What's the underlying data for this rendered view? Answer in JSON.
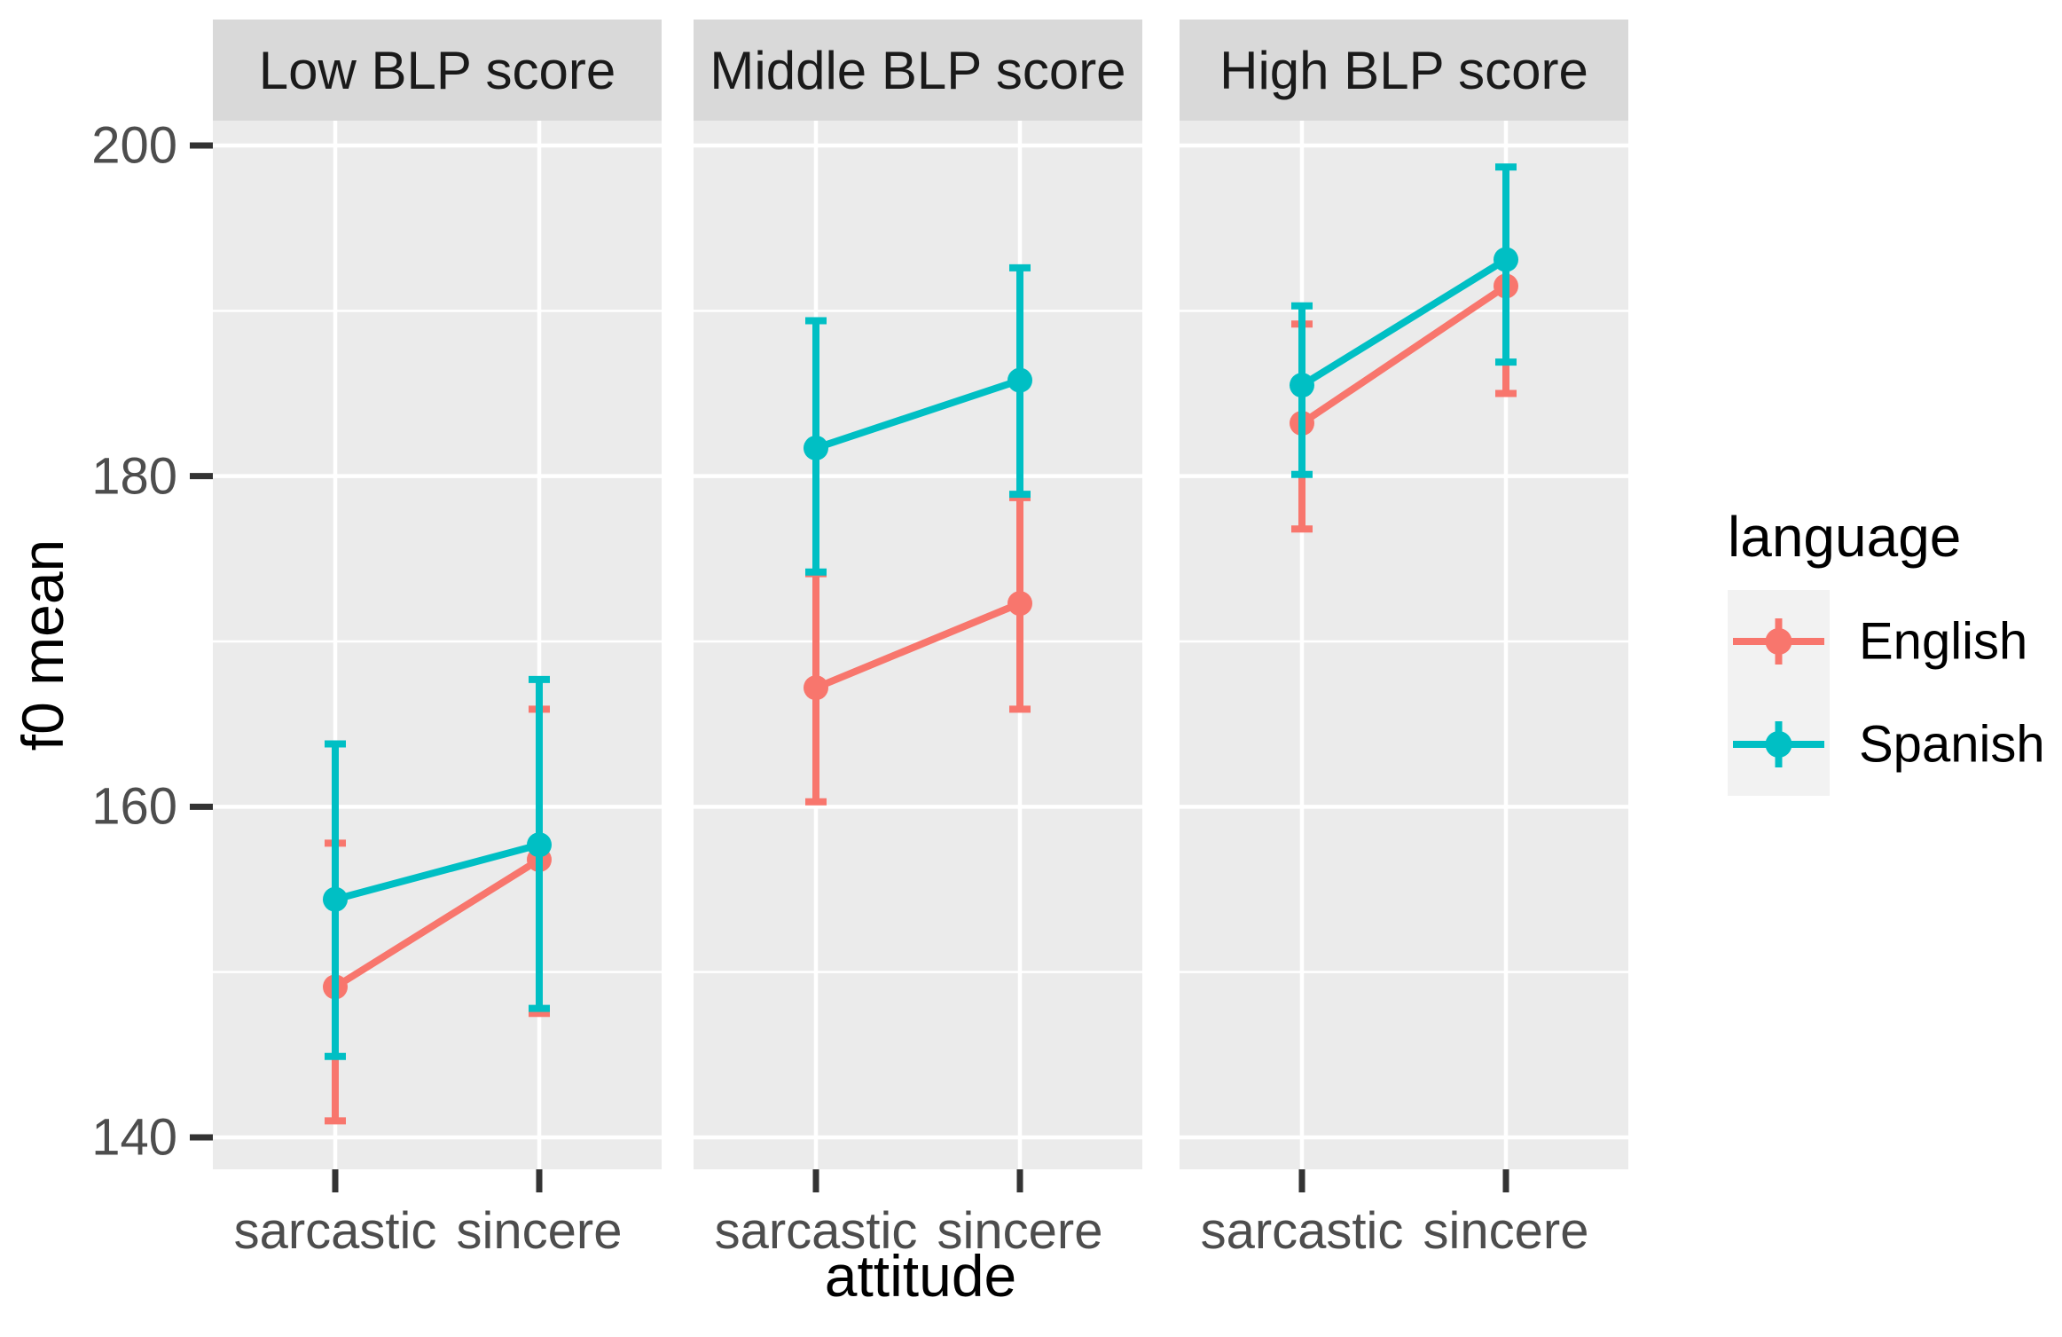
{
  "chart_data": {
    "type": "line",
    "title": "",
    "xlabel": "attitude",
    "ylabel": "f0 mean",
    "x_categories": [
      "sarcastic",
      "sincere"
    ],
    "y_ticks": [
      "200",
      "180",
      "160",
      "140"
    ],
    "y_tick_values": [
      200,
      180,
      160,
      140
    ],
    "y_minor_ticks": [
      190,
      170,
      150
    ],
    "ylim": [
      138,
      201.5
    ],
    "grid": "on",
    "error_bars": "95% CI (caps shown)",
    "facets": [
      {
        "label": "Low BLP score",
        "series": [
          {
            "name": "English",
            "values": [
              {
                "x": "sarcastic",
                "mean": 149.1,
                "ci_low": 141.0,
                "ci_high": 157.8
              },
              {
                "x": "sincere",
                "mean": 156.8,
                "ci_low": 147.5,
                "ci_high": 165.9
              }
            ]
          },
          {
            "name": "Spanish",
            "values": [
              {
                "x": "sarcastic",
                "mean": 154.4,
                "ci_low": 144.9,
                "ci_high": 163.8
              },
              {
                "x": "sincere",
                "mean": 157.7,
                "ci_low": 147.8,
                "ci_high": 167.7
              }
            ]
          }
        ]
      },
      {
        "label": "Middle BLP score",
        "series": [
          {
            "name": "English",
            "values": [
              {
                "x": "sarcastic",
                "mean": 167.2,
                "ci_low": 160.3,
                "ci_high": 174.1
              },
              {
                "x": "sincere",
                "mean": 172.3,
                "ci_low": 165.9,
                "ci_high": 178.7
              }
            ]
          },
          {
            "name": "Spanish",
            "values": [
              {
                "x": "sarcastic",
                "mean": 181.7,
                "ci_low": 174.2,
                "ci_high": 189.4
              },
              {
                "x": "sincere",
                "mean": 185.8,
                "ci_low": 178.9,
                "ci_high": 192.6
              }
            ]
          }
        ]
      },
      {
        "label": "High BLP score",
        "series": [
          {
            "name": "English",
            "values": [
              {
                "x": "sarcastic",
                "mean": 183.2,
                "ci_low": 176.8,
                "ci_high": 189.2
              },
              {
                "x": "sincere",
                "mean": 191.5,
                "ci_low": 185.0,
                "ci_high": 193.3
              }
            ]
          },
          {
            "name": "Spanish",
            "values": [
              {
                "x": "sarcastic",
                "mean": 185.5,
                "ci_low": 180.1,
                "ci_high": 190.3
              },
              {
                "x": "sincere",
                "mean": 193.1,
                "ci_low": 186.9,
                "ci_high": 198.7
              }
            ]
          }
        ]
      }
    ],
    "legend": {
      "title": "language",
      "position": "right",
      "entries": [
        {
          "label": "English",
          "color": "#F8766D"
        },
        {
          "label": "Spanish",
          "color": "#00BFC4"
        }
      ]
    },
    "theme": {
      "panel_background": "#EBEBEB",
      "strip_background": "#D9D9D9",
      "grid_color": "#FFFFFF",
      "tick_color": "#333333",
      "tick_label_color": "#4D4D4D",
      "legend_key_background": "#F2F2F2",
      "english_color": "#F8766D",
      "spanish_color": "#00BFC4"
    }
  }
}
